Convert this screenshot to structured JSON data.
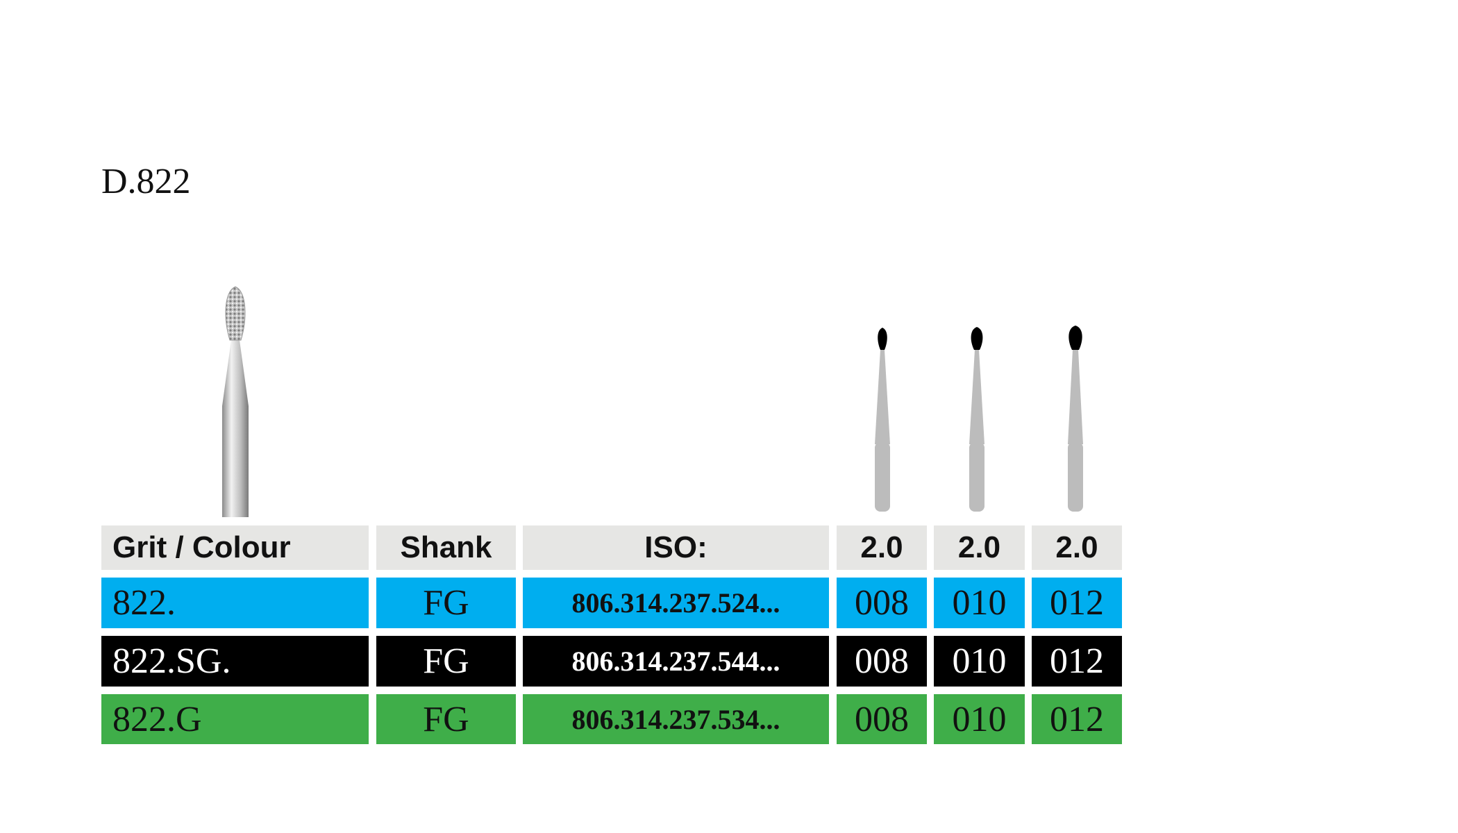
{
  "title": "D.822",
  "table": {
    "header": [
      "Grit / Colour",
      "Shank",
      "ISO:",
      "2.0",
      "2.0",
      "2.0"
    ],
    "rows": [
      [
        "822.",
        "FG",
        "806.314.237.524...",
        "008",
        "010",
        "012"
      ],
      [
        "822.SG.",
        "FG",
        "806.314.237.544...",
        "008",
        "010",
        "012"
      ],
      [
        "822.G",
        "FG",
        "806.314.237.534...",
        "008",
        "010",
        "012"
      ]
    ]
  }
}
